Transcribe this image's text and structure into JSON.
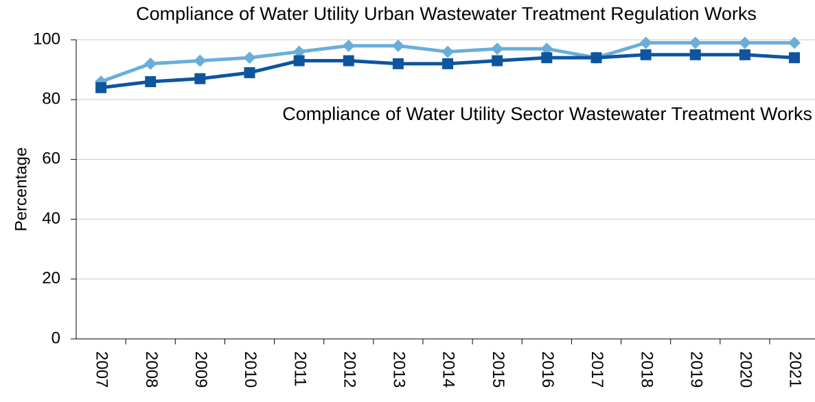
{
  "chart_data": {
    "type": "line",
    "y_label": "Percentage",
    "categories": [
      "2007",
      "2008",
      "2009",
      "2010",
      "2011",
      "2012",
      "2013",
      "2014",
      "2015",
      "2016",
      "2017",
      "2018",
      "2019",
      "2020",
      "2021"
    ],
    "series": [
      {
        "name": "Compliance of Water Utility Urban Wastewater Treatment Regulation Works",
        "color": "#6aaed8",
        "marker": "diamond",
        "values": [
          86,
          92,
          93,
          94,
          96,
          98,
          98,
          96,
          97,
          97,
          94,
          99,
          99,
          99,
          99
        ]
      },
      {
        "name": "Compliance of Water Utility Sector Wastewater Treatment Works",
        "color": "#0f559e",
        "marker": "square",
        "values": [
          84,
          86,
          87,
          89,
          93,
          93,
          92,
          92,
          93,
          94,
          94,
          95,
          95,
          95,
          94
        ]
      }
    ],
    "ylim": [
      0,
      100
    ],
    "yticks": [
      0,
      20,
      40,
      60,
      80,
      100
    ],
    "grid": true
  }
}
